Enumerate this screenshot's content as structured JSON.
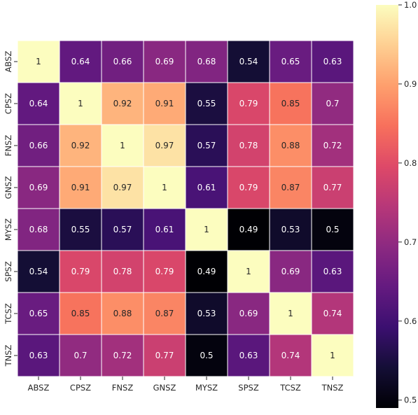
{
  "chart_data": {
    "type": "heatmap",
    "title": "",
    "xlabel": "",
    "ylabel": "",
    "colormap": "magma",
    "x_labels": [
      "ABSZ",
      "CPSZ",
      "FNSZ",
      "GNSZ",
      "MYSZ",
      "SPSZ",
      "TCSZ",
      "TNSZ"
    ],
    "y_labels": [
      "ABSZ",
      "CPSZ",
      "FNSZ",
      "GNSZ",
      "MYSZ",
      "SPSZ",
      "TCSZ",
      "TNSZ"
    ],
    "values": [
      [
        1,
        0.64,
        0.66,
        0.69,
        0.68,
        0.54,
        0.65,
        0.63
      ],
      [
        0.64,
        1,
        0.92,
        0.91,
        0.55,
        0.79,
        0.85,
        0.7
      ],
      [
        0.66,
        0.92,
        1,
        0.97,
        0.57,
        0.78,
        0.88,
        0.72
      ],
      [
        0.69,
        0.91,
        0.97,
        1,
        0.61,
        0.79,
        0.87,
        0.77
      ],
      [
        0.68,
        0.55,
        0.57,
        0.61,
        1,
        0.49,
        0.53,
        0.5
      ],
      [
        0.54,
        0.79,
        0.78,
        0.79,
        0.49,
        1,
        0.69,
        0.63
      ],
      [
        0.65,
        0.85,
        0.88,
        0.87,
        0.53,
        0.69,
        1,
        0.74
      ],
      [
        0.63,
        0.7,
        0.72,
        0.77,
        0.5,
        0.63,
        0.74,
        1
      ]
    ],
    "value_labels": [
      [
        "1",
        "0.64",
        "0.66",
        "0.69",
        "0.68",
        "0.54",
        "0.65",
        "0.63"
      ],
      [
        "0.64",
        "1",
        "0.92",
        "0.91",
        "0.55",
        "0.79",
        "0.85",
        "0.7"
      ],
      [
        "0.66",
        "0.92",
        "1",
        "0.97",
        "0.57",
        "0.78",
        "0.88",
        "0.72"
      ],
      [
        "0.69",
        "0.91",
        "0.97",
        "1",
        "0.61",
        "0.79",
        "0.87",
        "0.77"
      ],
      [
        "0.68",
        "0.55",
        "0.57",
        "0.61",
        "1",
        "0.49",
        "0.53",
        "0.5"
      ],
      [
        "0.54",
        "0.79",
        "0.78",
        "0.79",
        "0.49",
        "1",
        "0.69",
        "0.63"
      ],
      [
        "0.65",
        "0.85",
        "0.88",
        "0.87",
        "0.53",
        "0.69",
        "1",
        "0.74"
      ],
      [
        "0.63",
        "0.7",
        "0.72",
        "0.77",
        "0.5",
        "0.63",
        "0.74",
        "1"
      ]
    ],
    "colorbar": {
      "vmin": 0.49,
      "vmax": 1.0,
      "ticks": [
        0.5,
        0.6,
        0.7,
        0.8,
        0.9,
        1.0
      ],
      "tick_labels": [
        "0.5",
        "0.6",
        "0.7",
        "0.8",
        "0.9",
        "1.0"
      ]
    },
    "grid_line_color": "#ffffff"
  }
}
